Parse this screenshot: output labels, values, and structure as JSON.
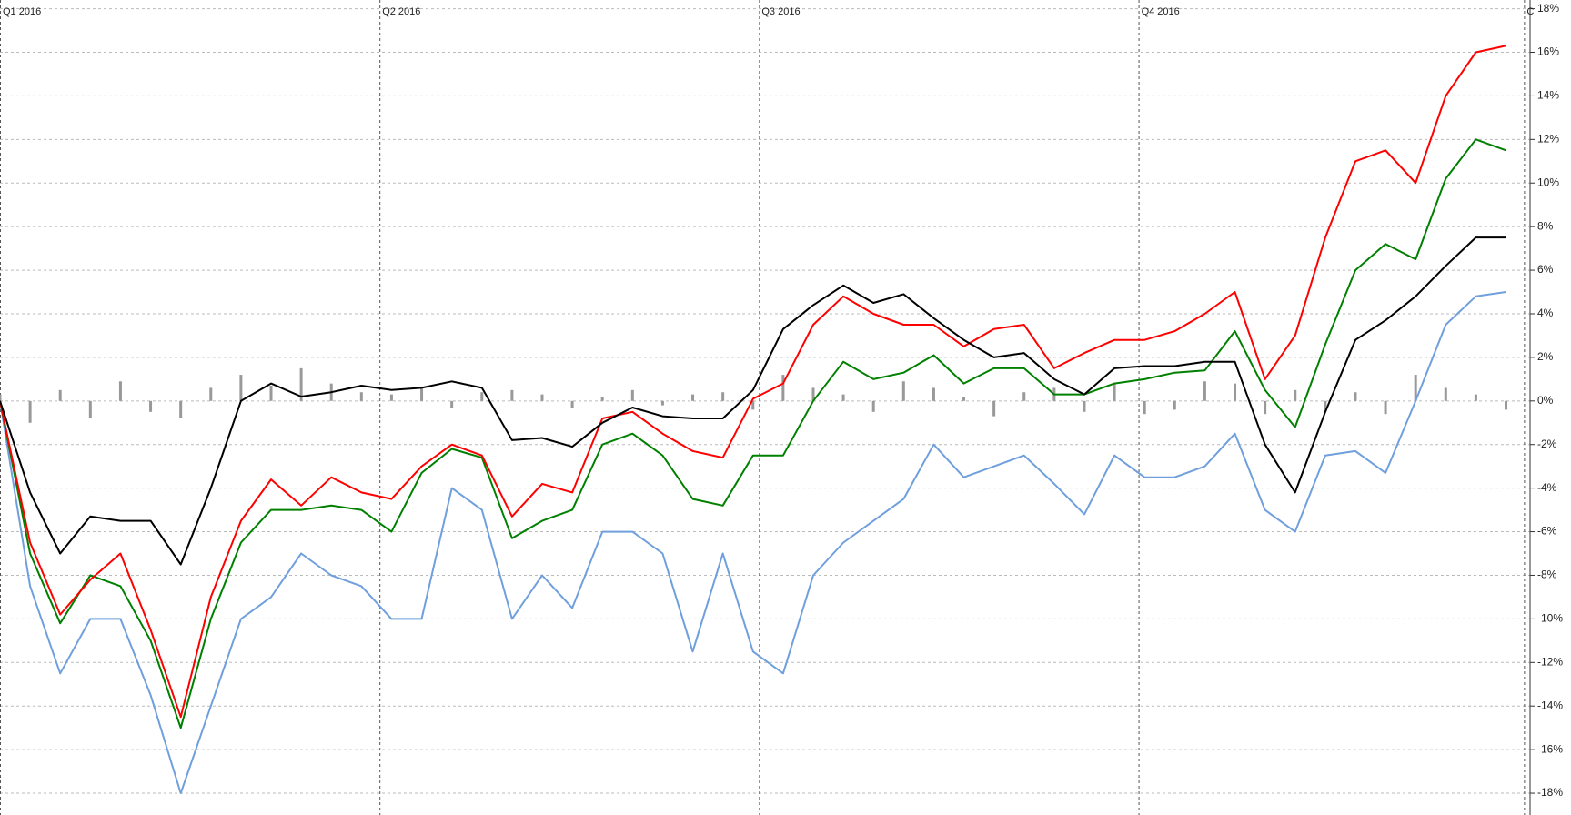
{
  "chart_data": {
    "type": "line",
    "x": [
      0,
      5,
      10,
      15,
      20,
      25,
      30,
      35,
      40,
      45,
      50,
      55,
      60,
      65,
      70,
      75,
      80,
      85,
      90,
      95,
      100,
      105,
      110,
      115,
      120,
      125,
      130,
      135,
      140,
      145,
      150,
      155,
      160,
      165,
      170,
      175,
      180,
      185,
      190,
      195,
      200,
      205,
      210,
      215,
      220,
      225,
      230,
      235,
      240,
      245,
      250
    ],
    "xlim": [
      0,
      254
    ],
    "xticks": [
      {
        "value": 0,
        "label": "Q1 2016"
      },
      {
        "value": 63,
        "label": "Q2 2016"
      },
      {
        "value": 126,
        "label": "Q3 2016"
      },
      {
        "value": 189,
        "label": "Q4 2016"
      },
      {
        "value": 253,
        "label": "C"
      }
    ],
    "ylim": [
      -19,
      18.4
    ],
    "yticks": [
      {
        "value": 18,
        "label": "18%"
      },
      {
        "value": 16,
        "label": "16%"
      },
      {
        "value": 14,
        "label": "14%"
      },
      {
        "value": 12,
        "label": "12%"
      },
      {
        "value": 10,
        "label": "10%"
      },
      {
        "value": 8,
        "label": "8%"
      },
      {
        "value": 6,
        "label": "6%"
      },
      {
        "value": 4,
        "label": "4%"
      },
      {
        "value": 2,
        "label": "2%"
      },
      {
        "value": 0,
        "label": "0%"
      },
      {
        "value": -2,
        "label": "-2%"
      },
      {
        "value": -4,
        "label": "-4%"
      },
      {
        "value": -6,
        "label": "-6%"
      },
      {
        "value": -8,
        "label": "-8%"
      },
      {
        "value": -10,
        "label": "-10%"
      },
      {
        "value": -12,
        "label": "-12%"
      },
      {
        "value": -14,
        "label": "-14%"
      },
      {
        "value": -16,
        "label": "-16%"
      },
      {
        "value": -18,
        "label": "-18%"
      }
    ],
    "grid": true,
    "series": [
      {
        "type": "bar",
        "color": "#999999",
        "values": [
          0.3,
          -1,
          0.5,
          -0.8,
          0.9,
          -0.5,
          -0.8,
          0.6,
          1.2,
          0.7,
          1.5,
          0.8,
          0.4,
          0.3,
          0.6,
          -0.3,
          0.4,
          0.5,
          0.3,
          -0.3,
          0.2,
          0.5,
          -0.2,
          0.3,
          0.4,
          -0.4,
          1.2,
          0.6,
          0.3,
          -0.5,
          0.9,
          0.6,
          0.2,
          -0.7,
          0.4,
          0.6,
          -0.5,
          0.8,
          -0.6,
          -0.4,
          0.9,
          0.8,
          -0.6,
          0.5,
          -0.5,
          0.4,
          -0.6,
          1.2,
          0.6,
          0.3,
          -0.4
        ]
      },
      {
        "type": "line",
        "color": "#6f9fdc",
        "values": [
          0,
          -8.5,
          -12.5,
          -10,
          -10,
          -13.5,
          -18,
          -14,
          -10,
          -9,
          -7,
          -8,
          -8.5,
          -10,
          -10,
          -4,
          -5,
          -10,
          -8,
          -9.5,
          -6,
          -6,
          -7,
          -11.5,
          -7,
          -11.5,
          -12.5,
          -8,
          -6.5,
          -5.5,
          -4.5,
          -2,
          -3.5,
          -3,
          -2.5,
          -3.8,
          -5.2,
          -2.5,
          -3.5,
          -3.5,
          -3,
          -1.5,
          -5,
          -6,
          -2.5,
          -2.3,
          -3.3,
          0,
          3.5,
          4.8,
          5.0
        ]
      },
      {
        "type": "line",
        "color": "#008000",
        "values": [
          0,
          -7,
          -10.2,
          -8,
          -8.5,
          -11,
          -15,
          -10,
          -6.5,
          -5,
          -5,
          -4.8,
          -5,
          -6,
          -3.3,
          -2.2,
          -2.6,
          -6.3,
          -5.5,
          -5,
          -2,
          -1.5,
          -2.5,
          -4.5,
          -4.8,
          -2.5,
          -2.5,
          0,
          1.8,
          1.0,
          1.3,
          2.1,
          0.8,
          1.5,
          1.5,
          0.3,
          0.3,
          0.8,
          1.0,
          1.3,
          1.4,
          3.2,
          0.5,
          -1.2,
          2.6,
          6,
          7.2,
          6.5,
          10.2,
          12,
          11.5
        ]
      },
      {
        "type": "line",
        "color": "#ff0000",
        "values": [
          0,
          -6.5,
          -9.8,
          -8.2,
          -7,
          -10.5,
          -14.5,
          -9,
          -5.5,
          -3.6,
          -4.8,
          -3.5,
          -4.2,
          -4.5,
          -3,
          -2,
          -2.5,
          -5.3,
          -3.8,
          -4.2,
          -0.8,
          -0.5,
          -1.5,
          -2.3,
          -2.6,
          0.1,
          0.8,
          3.5,
          4.8,
          4.0,
          3.5,
          3.5,
          2.5,
          3.3,
          3.5,
          1.5,
          2.2,
          2.8,
          2.8,
          3.2,
          4.0,
          5.0,
          1.0,
          3.0,
          7.5,
          11,
          11.5,
          10,
          14,
          16,
          16.3
        ]
      },
      {
        "type": "line",
        "color": "#000000",
        "values": [
          0,
          -4.2,
          -7,
          -5.3,
          -5.5,
          -5.5,
          -7.5,
          -4,
          0,
          0.8,
          0.2,
          0.4,
          0.7,
          0.5,
          0.6,
          0.9,
          0.6,
          -1.8,
          -1.7,
          -2.1,
          -1,
          -0.3,
          -0.7,
          -0.8,
          -0.8,
          0.5,
          3.3,
          4.4,
          5.3,
          4.5,
          4.9,
          3.8,
          2.8,
          2.0,
          2.2,
          1.0,
          0.3,
          1.5,
          1.6,
          1.6,
          1.8,
          1.8,
          -2,
          -4.2,
          -0.5,
          2.8,
          3.7,
          4.8,
          6.2,
          7.5,
          7.5
        ]
      }
    ]
  }
}
